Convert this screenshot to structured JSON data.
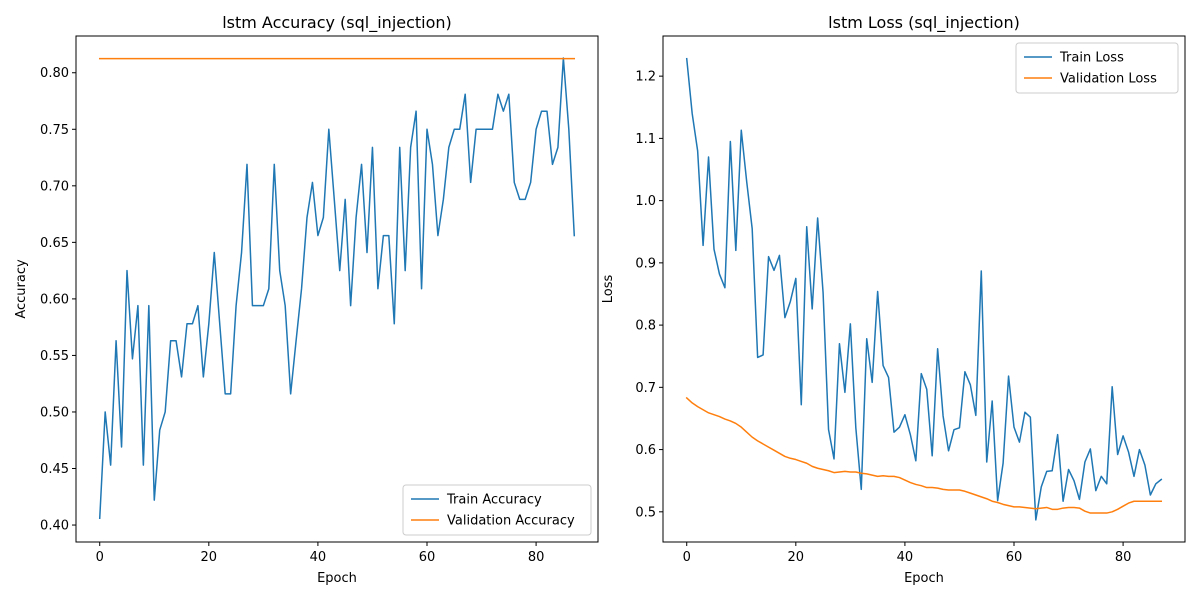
{
  "colors": {
    "train": "#1f77b4",
    "validation": "#ff7f0e"
  },
  "chart_data": [
    {
      "type": "line",
      "title": "lstm Accuracy (sql_injection)",
      "xlabel": "Epoch",
      "ylabel": "Accuracy",
      "xlim": [
        -4.35,
        91.35
      ],
      "ylim": [
        0.385,
        0.8325
      ],
      "xticks": [
        0,
        20,
        40,
        60,
        80
      ],
      "xtick_labels": [
        "0",
        "20",
        "40",
        "60",
        "80"
      ],
      "yticks": [
        0.4,
        0.45,
        0.5,
        0.55,
        0.6,
        0.65,
        0.7,
        0.75,
        0.8
      ],
      "ytick_labels": [
        "0.40",
        "0.45",
        "0.50",
        "0.55",
        "0.60",
        "0.65",
        "0.70",
        "0.75",
        "0.80"
      ],
      "grid": false,
      "legend_position": "lower-right",
      "series": [
        {
          "name": "Train Accuracy",
          "color": "#1f77b4",
          "values": [
            0.406,
            0.5,
            0.453,
            0.563,
            0.469,
            0.625,
            0.547,
            0.594,
            0.453,
            0.594,
            0.422,
            0.484,
            0.5,
            0.563,
            0.563,
            0.531,
            0.578,
            0.578,
            0.594,
            0.531,
            0.578,
            0.641,
            0.578,
            0.516,
            0.516,
            0.594,
            0.641,
            0.719,
            0.594,
            0.594,
            0.594,
            0.609,
            0.719,
            0.625,
            0.594,
            0.516,
            0.563,
            0.609,
            0.672,
            0.703,
            0.656,
            0.672,
            0.75,
            0.688,
            0.625,
            0.688,
            0.594,
            0.672,
            0.719,
            0.641,
            0.734,
            0.609,
            0.656,
            0.656,
            0.578,
            0.734,
            0.625,
            0.734,
            0.766,
            0.609,
            0.75,
            0.719,
            0.656,
            0.688,
            0.734,
            0.75,
            0.75,
            0.781,
            0.703,
            0.75,
            0.75,
            0.75,
            0.75,
            0.781,
            0.766,
            0.781,
            0.703,
            0.688,
            0.688,
            0.703,
            0.75,
            0.766,
            0.766,
            0.719,
            0.734,
            0.813,
            0.75,
            0.656
          ]
        },
        {
          "name": "Validation Accuracy",
          "color": "#ff7f0e",
          "values": [
            0.8125,
            0.8125,
            0.8125,
            0.8125,
            0.8125,
            0.8125,
            0.8125,
            0.8125,
            0.8125,
            0.8125,
            0.8125,
            0.8125,
            0.8125,
            0.8125,
            0.8125,
            0.8125,
            0.8125,
            0.8125,
            0.8125,
            0.8125,
            0.8125,
            0.8125,
            0.8125,
            0.8125,
            0.8125,
            0.8125,
            0.8125,
            0.8125,
            0.8125,
            0.8125,
            0.8125,
            0.8125,
            0.8125,
            0.8125,
            0.8125,
            0.8125,
            0.8125,
            0.8125,
            0.8125,
            0.8125,
            0.8125,
            0.8125,
            0.8125,
            0.8125,
            0.8125,
            0.8125,
            0.8125,
            0.8125,
            0.8125,
            0.8125,
            0.8125,
            0.8125,
            0.8125,
            0.8125,
            0.8125,
            0.8125,
            0.8125,
            0.8125,
            0.8125,
            0.8125,
            0.8125,
            0.8125,
            0.8125,
            0.8125,
            0.8125,
            0.8125,
            0.8125,
            0.8125,
            0.8125,
            0.8125,
            0.8125,
            0.8125,
            0.8125,
            0.8125,
            0.8125,
            0.8125,
            0.8125,
            0.8125,
            0.8125,
            0.8125,
            0.8125,
            0.8125,
            0.8125,
            0.8125,
            0.8125,
            0.8125,
            0.8125,
            0.8125
          ]
        }
      ]
    },
    {
      "type": "line",
      "title": "lstm Loss (sql_injection)",
      "xlabel": "Epoch",
      "ylabel": "Loss",
      "xlim": [
        -4.35,
        91.35
      ],
      "ylim": [
        0.4515,
        1.2645
      ],
      "xticks": [
        0,
        20,
        40,
        60,
        80
      ],
      "xtick_labels": [
        "0",
        "20",
        "40",
        "60",
        "80"
      ],
      "yticks": [
        0.5,
        0.6,
        0.7,
        0.8,
        0.9,
        1.0,
        1.1,
        1.2
      ],
      "ytick_labels": [
        "0.5",
        "0.6",
        "0.7",
        "0.8",
        "0.9",
        "1.0",
        "1.1",
        "1.2"
      ],
      "grid": false,
      "legend_position": "upper-right",
      "series": [
        {
          "name": "Train Loss",
          "color": "#1f77b4",
          "values": [
            1.228,
            1.14,
            1.08,
            0.928,
            1.07,
            0.922,
            0.882,
            0.86,
            1.095,
            0.92,
            1.113,
            1.03,
            0.955,
            0.748,
            0.752,
            0.91,
            0.888,
            0.912,
            0.812,
            0.838,
            0.875,
            0.672,
            0.958,
            0.826,
            0.972,
            0.852,
            0.632,
            0.585,
            0.77,
            0.692,
            0.802,
            0.635,
            0.536,
            0.778,
            0.708,
            0.854,
            0.735,
            0.716,
            0.628,
            0.636,
            0.656,
            0.624,
            0.582,
            0.722,
            0.697,
            0.59,
            0.762,
            0.654,
            0.598,
            0.632,
            0.635,
            0.725,
            0.704,
            0.655,
            0.887,
            0.58,
            0.678,
            0.518,
            0.578,
            0.718,
            0.636,
            0.612,
            0.66,
            0.652,
            0.487,
            0.54,
            0.565,
            0.566,
            0.624,
            0.517,
            0.568,
            0.55,
            0.52,
            0.58,
            0.601,
            0.534,
            0.557,
            0.545,
            0.701,
            0.592,
            0.622,
            0.596,
            0.557,
            0.6,
            0.575,
            0.527,
            0.545,
            0.552
          ]
        },
        {
          "name": "Validation Loss",
          "color": "#ff7f0e",
          "values": [
            0.683,
            0.675,
            0.669,
            0.664,
            0.659,
            0.656,
            0.653,
            0.649,
            0.646,
            0.642,
            0.636,
            0.628,
            0.62,
            0.614,
            0.609,
            0.604,
            0.599,
            0.594,
            0.589,
            0.586,
            0.584,
            0.581,
            0.578,
            0.573,
            0.57,
            0.568,
            0.566,
            0.563,
            0.564,
            0.565,
            0.564,
            0.564,
            0.562,
            0.561,
            0.559,
            0.557,
            0.558,
            0.557,
            0.557,
            0.555,
            0.551,
            0.547,
            0.544,
            0.542,
            0.539,
            0.539,
            0.538,
            0.536,
            0.535,
            0.535,
            0.535,
            0.533,
            0.53,
            0.527,
            0.524,
            0.521,
            0.517,
            0.515,
            0.512,
            0.51,
            0.508,
            0.508,
            0.507,
            0.506,
            0.505,
            0.506,
            0.507,
            0.504,
            0.504,
            0.506,
            0.507,
            0.507,
            0.506,
            0.501,
            0.498,
            0.498,
            0.498,
            0.498,
            0.5,
            0.504,
            0.509,
            0.514,
            0.517,
            0.517,
            0.517,
            0.517,
            0.517,
            0.517
          ]
        }
      ]
    }
  ]
}
